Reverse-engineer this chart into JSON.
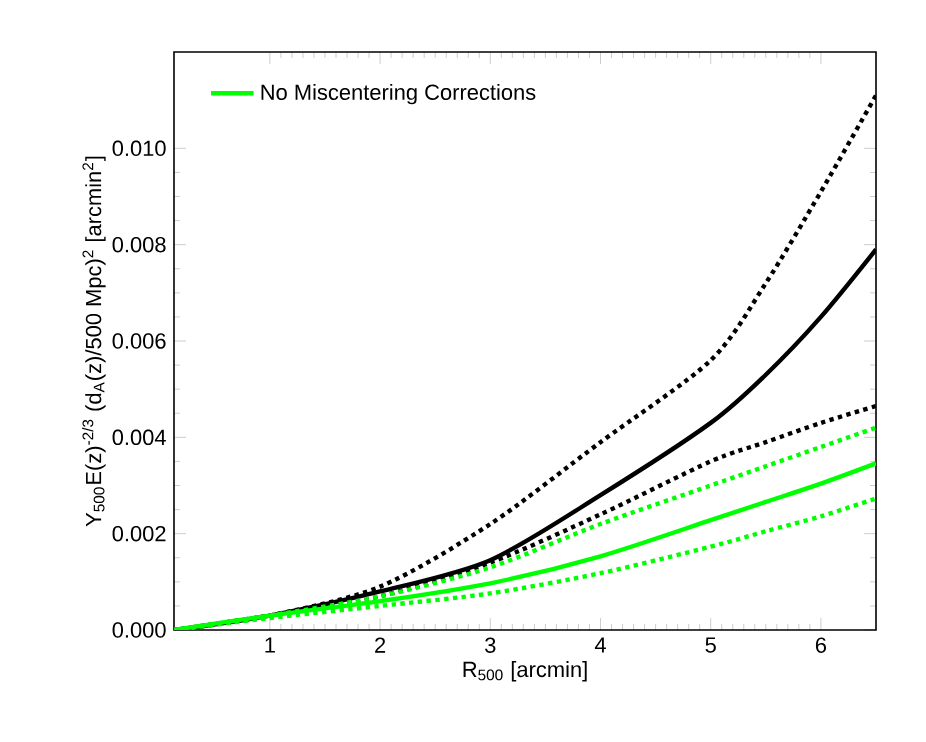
{
  "chart_data": {
    "type": "line",
    "xlabel": "R$_{500}$ [arcmin]",
    "ylabel": "Y$_{500}$E(z)$^{-2/3}$ (d$_{A}$(z)/500 Mpc)$^{2}$ [arcmin$^{2}$]",
    "x": [
      0.13,
      1,
      2,
      3,
      4,
      5,
      5.5,
      6,
      6.5
    ],
    "series": [
      {
        "color": "#000000",
        "line_style": "dotted",
        "values": [
          0,
          0.0003,
          0.0009,
          0.0022,
          0.0039,
          0.0056,
          0.0072,
          0.0091,
          0.0111
        ]
      },
      {
        "color": "#000000",
        "line_style": "solid",
        "values": [
          0,
          0.0003,
          0.0008,
          0.00145,
          0.0028,
          0.0043,
          0.0053,
          0.0065,
          0.0079
        ]
      },
      {
        "color": "#000000",
        "line_style": "dotted",
        "values": [
          0,
          0.0003,
          0.0007,
          0.0014,
          0.0024,
          0.0035,
          0.0039,
          0.0043,
          0.00465
        ]
      },
      {
        "color": "#00ff00",
        "line_style": "dotted",
        "values": [
          0,
          0.0003,
          0.0007,
          0.0013,
          0.0022,
          0.003,
          0.0034,
          0.0038,
          0.0042
        ]
      },
      {
        "name": "No Miscentering Corrections",
        "color": "#00ff00",
        "line_style": "solid",
        "values": [
          0,
          0.0003,
          0.0006,
          0.00097,
          0.00153,
          0.00228,
          0.00266,
          0.00304,
          0.00346
        ]
      },
      {
        "color": "#00ff00",
        "line_style": "dotted",
        "values": [
          0,
          0.00025,
          0.0005,
          0.00076,
          0.00118,
          0.00173,
          0.00205,
          0.00236,
          0.00273
        ]
      }
    ],
    "xlim": [
      0.13,
      6.5
    ],
    "ylim": [
      0,
      0.012
    ],
    "xticks": [
      1,
      2,
      3,
      4,
      5,
      6
    ],
    "yticks": [
      {
        "value": 0,
        "label": "0.000"
      },
      {
        "value": 0.002,
        "label": "0.002"
      },
      {
        "value": 0.004,
        "label": "0.004"
      },
      {
        "value": 0.006,
        "label": "0.006"
      },
      {
        "value": 0.008,
        "label": "0.008"
      },
      {
        "value": 0.01,
        "label": "0.010"
      }
    ],
    "legend": "top left",
    "grid": false
  }
}
